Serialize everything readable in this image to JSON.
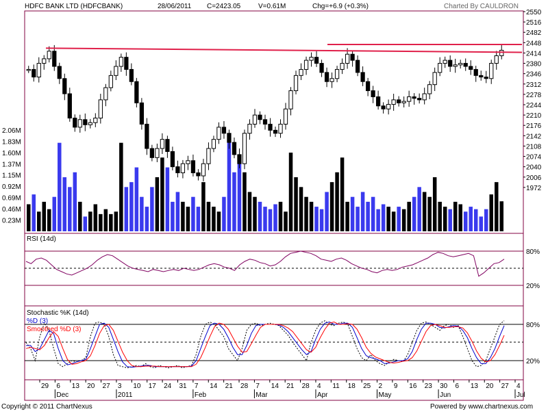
{
  "header": {
    "name": "HDFC BANK LTD (HDFCBANK)",
    "date": "28/06/2011",
    "close": "C=2423.05",
    "volume": "V=0.61M",
    "change": "Chg=+6.9 (+0.3%)",
    "credit": "Charted By CAULDRON"
  },
  "footer": {
    "copyright": "Copyright © 2011 ChartNexus",
    "powered": "Powered by www.chartnexus.com"
  },
  "colors": {
    "up": "#000000",
    "down": "#3a3aee",
    "rsi": "#800060",
    "stoch_k": "#0000cc",
    "stoch_d": "#ff0000",
    "trendline": "#e0204a",
    "panel_border": "#800040"
  },
  "chart_data": {
    "type": "candlestick",
    "x_ticks": [
      "29",
      "6",
      "13",
      "20",
      "27",
      "3",
      "10",
      "17",
      "24",
      "31",
      "7",
      "14",
      "21",
      "28",
      "7",
      "14",
      "21",
      "28",
      "4",
      "11",
      "18",
      "25",
      "2",
      "9",
      "16",
      "23",
      "30",
      "6",
      "13",
      "20",
      "27",
      "4"
    ],
    "x_months": [
      "Dec",
      "2011",
      "Feb",
      "Mar",
      "Apr",
      "May",
      "Jun",
      "Jul"
    ],
    "price_axis": [
      "2550",
      "2516",
      "2482",
      "2448",
      "2414",
      "2380",
      "2346",
      "2312",
      "2278",
      "2244",
      "2210",
      "2176",
      "2142",
      "2108",
      "2074",
      "2040",
      "2006",
      "1972"
    ],
    "price_range": [
      1938,
      2550
    ],
    "volume_axis": [
      "2.06M",
      "1.83M",
      "1.60M",
      "1.37M",
      "1.15M",
      "0.92M",
      "0.69M",
      "0.46M",
      "0.23M"
    ],
    "volume_max": 2.06,
    "price_series": [
      2360,
      2335,
      2380,
      2395,
      2420,
      2370,
      2330,
      2280,
      2200,
      2170,
      2195,
      2178,
      2185,
      2200,
      2260,
      2300,
      2340,
      2370,
      2400,
      2360,
      2320,
      2250,
      2180,
      2100,
      2070,
      2100,
      2130,
      2090,
      2040,
      2020,
      2050,
      2060,
      2020,
      2010,
      2050,
      2100,
      2130,
      2170,
      2150,
      2120,
      2080,
      2050,
      2150,
      2180,
      2210,
      2195,
      2180,
      2160,
      2150,
      2180,
      2230,
      2290,
      2340,
      2360,
      2390,
      2400,
      2380,
      2350,
      2320,
      2330,
      2360,
      2380,
      2410,
      2390,
      2350,
      2320,
      2290,
      2270,
      2240,
      2230,
      2245,
      2260,
      2250,
      2255,
      2270,
      2265,
      2260,
      2280,
      2310,
      2350,
      2380,
      2390,
      2370,
      2375,
      2380,
      2370,
      2360,
      2340,
      2335,
      2330,
      2380,
      2405,
      2423
    ],
    "volume_series": [
      0.55,
      0.75,
      0.4,
      0.6,
      0.45,
      0.7,
      1.8,
      1.1,
      0.9,
      1.2,
      0.6,
      0.3,
      0.4,
      0.55,
      0.35,
      0.45,
      0.35,
      0.4,
      1.8,
      0.9,
      1.0,
      1.3,
      0.7,
      0.5,
      0.9,
      1.1,
      1.5,
      1.3,
      0.6,
      0.8,
      0.6,
      0.5,
      0.7,
      0.5,
      1.0,
      0.6,
      0.5,
      0.4,
      0.7,
      1.9,
      1.2,
      1.4,
      1.2,
      0.8,
      0.7,
      0.6,
      0.5,
      0.45,
      0.55,
      0.6,
      0.4,
      1.6,
      1.1,
      0.9,
      0.7,
      0.6,
      0.5,
      0.45,
      0.8,
      1.0,
      1.2,
      1.5,
      0.6,
      0.7,
      0.5,
      0.8,
      0.6,
      0.7,
      0.45,
      0.55,
      0.5,
      0.4,
      0.5,
      0.45,
      0.6,
      0.7,
      0.9,
      0.8,
      0.7,
      1.1,
      0.6,
      0.5,
      0.45,
      0.6,
      0.55,
      0.4,
      0.5,
      0.45,
      0.3,
      0.45,
      0.75,
      1.0,
      0.61
    ],
    "trendlines": [
      {
        "from": 2430,
        "to": 2416
      },
      {
        "from": 2442,
        "to": 2442
      }
    ],
    "rsi": {
      "label": "RSI (14d)",
      "axis": [
        "80%",
        "20%"
      ],
      "values": [
        62,
        58,
        66,
        68,
        64,
        56,
        48,
        44,
        40,
        38,
        42,
        46,
        50,
        56,
        64,
        70,
        74,
        72,
        66,
        60,
        54,
        50,
        48,
        46,
        44,
        48,
        46,
        44,
        46,
        48,
        46,
        50,
        48,
        46,
        48,
        52,
        56,
        58,
        56,
        52,
        50,
        46,
        56,
        62,
        66,
        64,
        60,
        58,
        54,
        56,
        62,
        70,
        76,
        78,
        80,
        78,
        76,
        72,
        66,
        64,
        62,
        66,
        68,
        64,
        58,
        54,
        50,
        48,
        44,
        42,
        46,
        48,
        46,
        48,
        52,
        54,
        56,
        60,
        64,
        68,
        74,
        78,
        76,
        72,
        70,
        72,
        74,
        76,
        72,
        36,
        42,
        50,
        58,
        60,
        66
      ]
    },
    "stochastic": {
      "label": "Stochastic %K (14d)",
      "d_label": "%D (3)",
      "smoothed_label": "Smoothed %D (3)",
      "axis": [
        "80%",
        "20%"
      ],
      "k": [
        50,
        40,
        20,
        60,
        82,
        70,
        40,
        15,
        10,
        15,
        20,
        18,
        20,
        25,
        60,
        82,
        84,
        80,
        60,
        30,
        12,
        10,
        8,
        10,
        12,
        10,
        15,
        10,
        8,
        12,
        10,
        8,
        10,
        12,
        8,
        10,
        12,
        30,
        60,
        80,
        84,
        80,
        70,
        60,
        40,
        30,
        20,
        40,
        70,
        80,
        82,
        78,
        80,
        82,
        80,
        78,
        70,
        62,
        50,
        40,
        30,
        20,
        50,
        70,
        82,
        86,
        80,
        78,
        82,
        84,
        80,
        60,
        40,
        25,
        20,
        30,
        20,
        15,
        12,
        18,
        22,
        20,
        18,
        30,
        50,
        70,
        82,
        84,
        80,
        75,
        70,
        78,
        80,
        75,
        78,
        60,
        40,
        20,
        10,
        12,
        20,
        40,
        60,
        80,
        86
      ],
      "d": [
        45,
        45,
        35,
        40,
        55,
        70,
        65,
        40,
        20,
        13,
        15,
        18,
        20,
        22,
        40,
        60,
        80,
        82,
        75,
        55,
        35,
        18,
        10,
        9,
        10,
        11,
        12,
        12,
        10,
        10,
        10,
        10,
        10,
        10,
        10,
        10,
        11,
        20,
        40,
        60,
        78,
        82,
        80,
        72,
        58,
        42,
        30,
        30,
        45,
        65,
        78,
        80,
        80,
        80,
        80,
        79,
        75,
        68,
        58,
        48,
        38,
        30,
        35,
        55,
        72,
        82,
        84,
        80,
        80,
        82,
        82,
        75,
        58,
        40,
        28,
        25,
        23,
        20,
        15,
        16,
        18,
        20,
        20,
        23,
        35,
        55,
        72,
        82,
        82,
        80,
        75,
        74,
        76,
        78,
        77,
        70,
        58,
        40,
        25,
        15,
        15,
        25,
        40,
        60,
        78
      ],
      "smoothed": [
        40,
        42,
        40,
        38,
        45,
        58,
        68,
        60,
        40,
        22,
        14,
        15,
        18,
        20,
        28,
        45,
        65,
        78,
        80,
        70,
        52,
        34,
        20,
        12,
        10,
        10,
        11,
        11,
        11,
        10,
        10,
        10,
        10,
        10,
        10,
        10,
        10,
        14,
        25,
        42,
        60,
        76,
        82,
        80,
        72,
        58,
        44,
        34,
        35,
        48,
        62,
        75,
        80,
        80,
        80,
        80,
        78,
        74,
        68,
        58,
        48,
        38,
        34,
        42,
        58,
        72,
        82,
        84,
        80,
        80,
        81,
        80,
        72,
        58,
        42,
        32,
        26,
        23,
        20,
        17,
        16,
        17,
        19,
        20,
        25,
        36,
        52,
        68,
        78,
        80,
        78,
        75,
        75,
        76,
        76,
        74,
        66,
        52,
        36,
        24,
        18,
        20,
        30,
        45,
        62
      ]
    }
  }
}
